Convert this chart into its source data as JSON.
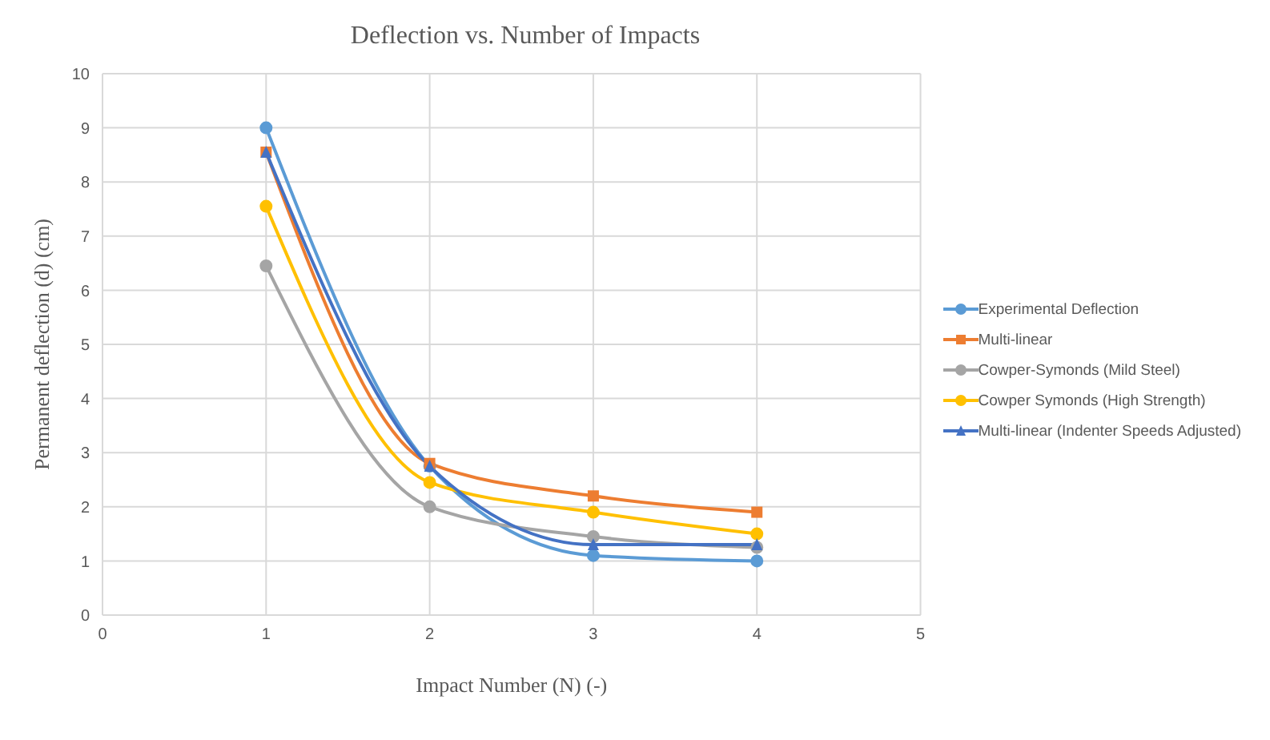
{
  "chart_data": {
    "type": "line",
    "title": "Deflection vs. Number of Impacts",
    "xlabel": "Impact Number (N) (-)",
    "ylabel": "Permanent deflection (d) (cm)",
    "x": [
      1,
      2,
      3,
      4
    ],
    "series": [
      {
        "name": "Experimental Deflection",
        "color": "#5b9bd5",
        "marker": "circle",
        "values": [
          9.0,
          2.75,
          1.1,
          1.0
        ]
      },
      {
        "name": "Multi-linear",
        "color": "#ed7d31",
        "marker": "square",
        "values": [
          8.55,
          2.8,
          2.2,
          1.9
        ]
      },
      {
        "name": "Cowper-Symonds (Mild Steel)",
        "color": "#a5a5a5",
        "marker": "circle",
        "values": [
          6.45,
          2.0,
          1.45,
          1.25
        ]
      },
      {
        "name": "Cowper Symonds (High Strength)",
        "color": "#ffc000",
        "marker": "circle",
        "values": [
          7.55,
          2.45,
          1.9,
          1.5
        ]
      },
      {
        "name": "Multi-linear (Indenter Speeds Adjusted)",
        "color": "#4472c4",
        "marker": "triangle",
        "values": [
          8.55,
          2.75,
          1.3,
          1.3
        ]
      }
    ],
    "xlim": [
      0,
      5
    ],
    "xticks": [
      0,
      1,
      2,
      3,
      4,
      5
    ],
    "ylim": [
      0,
      10
    ],
    "yticks": [
      0,
      1,
      2,
      3,
      4,
      5,
      6,
      7,
      8,
      9,
      10
    ],
    "grid": true,
    "legend": "right",
    "line_style": "solid"
  }
}
